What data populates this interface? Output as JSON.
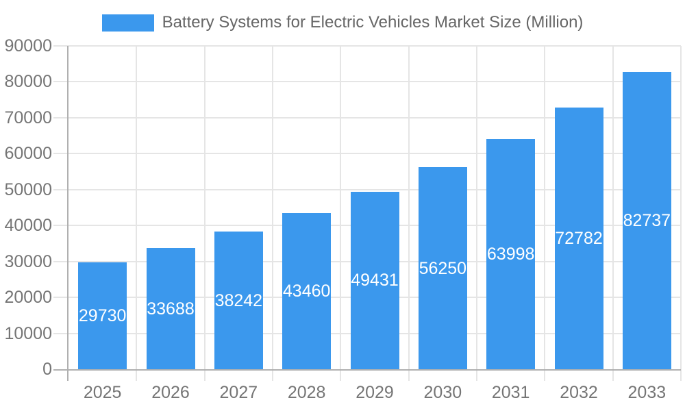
{
  "chart_data": {
    "type": "bar",
    "title": "Battery Systems for Electric Vehicles Market Size (Million)",
    "categories": [
      "2025",
      "2026",
      "2027",
      "2028",
      "2029",
      "2030",
      "2031",
      "2032",
      "2033"
    ],
    "values": [
      29730,
      33688,
      38242,
      43460,
      49431,
      56250,
      63998,
      72782,
      82737
    ],
    "xlabel": "",
    "ylabel": "",
    "ylim": [
      0,
      90000
    ],
    "ytick_step": 10000,
    "ytick_labels": [
      "0",
      "10000",
      "20000",
      "30000",
      "40000",
      "50000",
      "60000",
      "70000",
      "80000",
      "90000"
    ],
    "grid": true,
    "legend_position": "top-center",
    "bar_label_position": "inside-center",
    "colors": {
      "bar": "#3b98ed",
      "bar_label": "#ffffff",
      "grid_line": "#e5e5e5",
      "axis_line": "#b0b0b0",
      "tick_label": "#757575",
      "legend_text": "#666666",
      "background": "#ffffff"
    }
  },
  "legend": {
    "items": [
      {
        "label": "Battery Systems for Electric Vehicles Market Size (Million)",
        "swatch_color": "#3b98ed"
      }
    ]
  }
}
